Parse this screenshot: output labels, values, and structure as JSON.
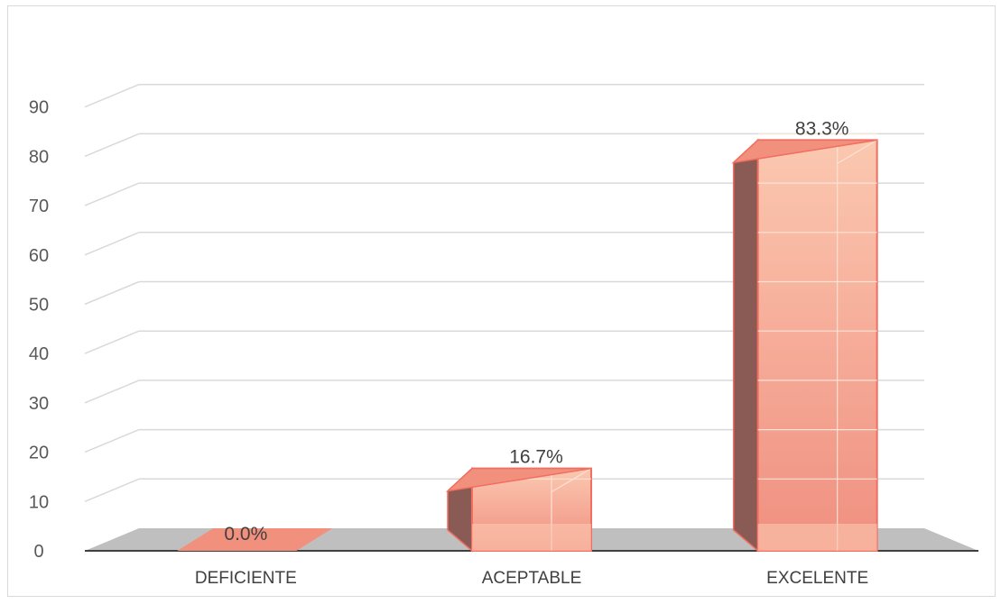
{
  "chart_data": {
    "type": "bar",
    "style": "3d-column",
    "categories": [
      "DEFICIENTE",
      "ACEPTABLE",
      "EXCELENTE"
    ],
    "values": [
      0.0,
      16.7,
      83.3
    ],
    "data_labels": [
      "0.0%",
      "16.7%",
      "83.3%"
    ],
    "ylim": [
      0,
      90
    ],
    "yticks": [
      0,
      10,
      20,
      30,
      40,
      50,
      60,
      70,
      80,
      90
    ],
    "yticks_labels": [
      "0",
      "10",
      "20",
      "30",
      "40",
      "50",
      "60",
      "70",
      "80",
      "90"
    ],
    "grid": true,
    "legend": "none",
    "colors": {
      "front_light": "#fbc8b0",
      "front_dark": "#f08f80",
      "side": "#8a5a55",
      "top": "#f2907e",
      "edge": "#f26e60",
      "floor": "#bfbfbf",
      "grid": "#d9d9d9"
    }
  }
}
